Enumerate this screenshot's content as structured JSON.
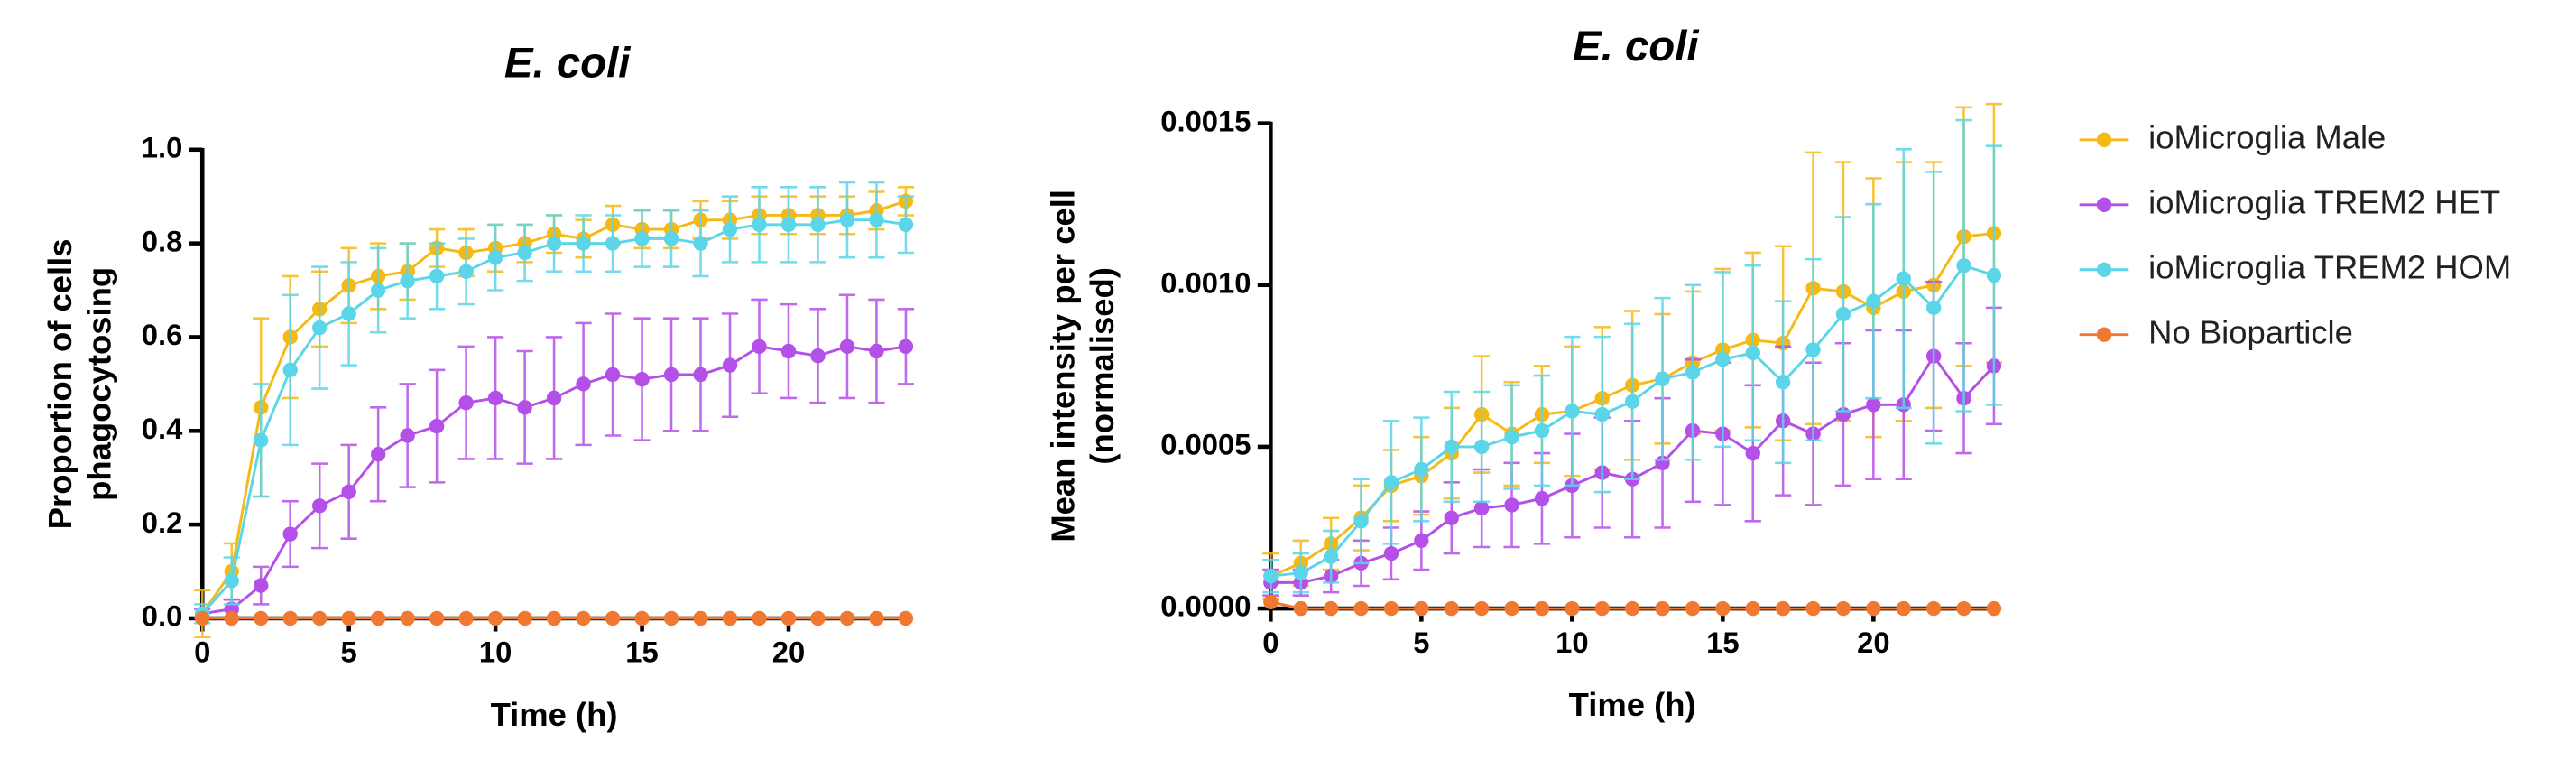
{
  "chart_data": [
    {
      "type": "line",
      "title": "E. coli",
      "xlabel": "Time (h)",
      "ylabel": [
        "Proportion of cells",
        "phagocytosing"
      ],
      "x": [
        0,
        1,
        2,
        3,
        4,
        5,
        6,
        7,
        8,
        9,
        10,
        11,
        12,
        13,
        14,
        15,
        16,
        17,
        18,
        19,
        20,
        21,
        22,
        23,
        24
      ],
      "xlim": [
        0,
        24
      ],
      "xticks": [
        0,
        5,
        10,
        15,
        20
      ],
      "ylim": [
        0,
        1
      ],
      "yticks": [
        {
          "value": 0,
          "label": "0.0"
        },
        0.2,
        0.4,
        0.6,
        0.8,
        {
          "value": 1,
          "label": "1.0"
        }
      ],
      "series": [
        {
          "color": "#f5b916",
          "values": [
            0.01,
            0.1,
            0.45,
            0.6,
            0.66,
            0.71,
            0.73,
            0.74,
            0.79,
            0.78,
            0.79,
            0.8,
            0.82,
            0.81,
            0.84,
            0.83,
            0.83,
            0.85,
            0.85,
            0.86,
            0.86,
            0.86,
            0.86,
            0.87,
            0.89
          ],
          "errors": [
            0.05,
            0.06,
            0.19,
            0.13,
            0.08,
            0.08,
            0.07,
            0.06,
            0.04,
            0.05,
            0.05,
            0.04,
            0.04,
            0.04,
            0.04,
            0.04,
            0.04,
            0.04,
            0.04,
            0.04,
            0.04,
            0.04,
            0.04,
            0.04,
            0.03
          ]
        },
        {
          "color": "#b44fe8",
          "values": [
            0.01,
            0.02,
            0.07,
            0.18,
            0.24,
            0.27,
            0.35,
            0.39,
            0.41,
            0.46,
            0.47,
            0.45,
            0.47,
            0.5,
            0.52,
            0.51,
            0.52,
            0.52,
            0.54,
            0.58,
            0.57,
            0.56,
            0.58,
            0.57,
            0.58
          ],
          "errors": [
            0.01,
            0.02,
            0.04,
            0.07,
            0.09,
            0.1,
            0.1,
            0.11,
            0.12,
            0.12,
            0.13,
            0.12,
            0.13,
            0.13,
            0.13,
            0.13,
            0.12,
            0.12,
            0.11,
            0.1,
            0.1,
            0.1,
            0.11,
            0.11,
            0.08
          ]
        },
        {
          "color": "#5ad6e8",
          "values": [
            0.01,
            0.08,
            0.38,
            0.53,
            0.62,
            0.65,
            0.7,
            0.72,
            0.73,
            0.74,
            0.77,
            0.78,
            0.8,
            0.8,
            0.8,
            0.81,
            0.81,
            0.8,
            0.83,
            0.84,
            0.84,
            0.84,
            0.85,
            0.85,
            0.84
          ],
          "errors": [
            0.02,
            0.05,
            0.12,
            0.16,
            0.13,
            0.11,
            0.09,
            0.08,
            0.07,
            0.07,
            0.07,
            0.06,
            0.06,
            0.06,
            0.06,
            0.06,
            0.06,
            0.07,
            0.07,
            0.08,
            0.08,
            0.08,
            0.08,
            0.08,
            0.06
          ]
        },
        {
          "color": "#f07830",
          "values": [
            0,
            0,
            0,
            0,
            0,
            0,
            0,
            0,
            0,
            0,
            0,
            0,
            0,
            0,
            0,
            0,
            0,
            0,
            0,
            0,
            0,
            0,
            0,
            0,
            0
          ],
          "errors": [
            0,
            0,
            0,
            0,
            0,
            0,
            0,
            0,
            0,
            0,
            0,
            0,
            0,
            0,
            0,
            0,
            0,
            0,
            0,
            0,
            0,
            0,
            0,
            0,
            0
          ]
        }
      ]
    },
    {
      "type": "line",
      "title": "E. coli",
      "xlabel": "Time (h)",
      "ylabel": [
        "Mean intensity per cell",
        "(normalised)"
      ],
      "x": [
        0,
        1,
        2,
        3,
        4,
        5,
        6,
        7,
        8,
        9,
        10,
        11,
        12,
        13,
        14,
        15,
        16,
        17,
        18,
        19,
        20,
        21,
        22,
        23,
        24
      ],
      "xlim": [
        0,
        24
      ],
      "xticks": [
        0,
        5,
        10,
        15,
        20
      ],
      "ylim": [
        0,
        0.0015
      ],
      "yticks": [
        {
          "value": 0,
          "label": "0.0000"
        },
        {
          "value": 0.0005,
          "label": "0.0005"
        },
        {
          "value": 0.001,
          "label": "0.0010"
        },
        {
          "value": 0.0015,
          "label": "0.0015"
        }
      ],
      "legend": "right",
      "series": [
        {
          "name": "ioMicroglia Male",
          "color": "#f5b916",
          "values": [
            0.0001,
            0.00014,
            0.0002,
            0.00028,
            0.00038,
            0.00041,
            0.00048,
            0.0006,
            0.00054,
            0.0006,
            0.00061,
            0.00065,
            0.00069,
            0.00071,
            0.00076,
            0.0008,
            0.00083,
            0.00082,
            0.00099,
            0.00098,
            0.00093,
            0.00098,
            0.001,
            0.00115,
            0.00116
          ],
          "errors": [
            7e-05,
            7e-05,
            8e-05,
            0.0001,
            0.00011,
            0.00012,
            0.00014,
            0.00018,
            0.00016,
            0.00015,
            0.0002,
            0.00022,
            0.00023,
            0.0002,
            0.00022,
            0.00025,
            0.00027,
            0.0003,
            0.00042,
            0.0004,
            0.0004,
            0.0004,
            0.00038,
            0.0004,
            0.0004
          ]
        },
        {
          "name": "ioMicroglia TREM2 HET",
          "color": "#b44fe8",
          "values": [
            8e-05,
            8e-05,
            0.0001,
            0.00014,
            0.00017,
            0.00021,
            0.00028,
            0.00031,
            0.00032,
            0.00034,
            0.00038,
            0.00042,
            0.0004,
            0.00045,
            0.00055,
            0.00054,
            0.00048,
            0.00058,
            0.00054,
            0.0006,
            0.00063,
            0.00063,
            0.00078,
            0.00065,
            0.00075
          ],
          "errors": [
            4e-05,
            4e-05,
            5e-05,
            7e-05,
            8e-05,
            9e-05,
            0.00011,
            0.00012,
            0.00013,
            0.00014,
            0.00016,
            0.00017,
            0.00018,
            0.0002,
            0.00022,
            0.00022,
            0.00021,
            0.00023,
            0.00022,
            0.00022,
            0.00023,
            0.00023,
            0.00023,
            0.00017,
            0.00018
          ]
        },
        {
          "name": "ioMicroglia TREM2 HOM",
          "color": "#5ad6e8",
          "values": [
            0.0001,
            0.00011,
            0.00016,
            0.00027,
            0.00039,
            0.00043,
            0.0005,
            0.0005,
            0.00053,
            0.00055,
            0.00061,
            0.0006,
            0.00064,
            0.00071,
            0.00073,
            0.00077,
            0.00079,
            0.0007,
            0.0008,
            0.00091,
            0.00095,
            0.00102,
            0.00093,
            0.00106,
            0.00103
          ],
          "errors": [
            5e-05,
            6e-05,
            8e-05,
            0.00013,
            0.00019,
            0.00016,
            0.00017,
            0.00017,
            0.00016,
            0.00017,
            0.00023,
            0.00024,
            0.00024,
            0.00025,
            0.00027,
            0.00027,
            0.00027,
            0.00025,
            0.00028,
            0.0003,
            0.0003,
            0.0004,
            0.00042,
            0.00045,
            0.0004
          ]
        },
        {
          "name": "No Bioparticle",
          "color": "#f07830",
          "values": [
            2e-05,
            0,
            0,
            0,
            0,
            0,
            0,
            0,
            0,
            0,
            0,
            0,
            0,
            0,
            0,
            0,
            0,
            0,
            0,
            0,
            0,
            0,
            0,
            0,
            0
          ],
          "errors": [
            0,
            0,
            0,
            0,
            0,
            0,
            0,
            0,
            0,
            0,
            0,
            0,
            0,
            0,
            0,
            0,
            0,
            0,
            0,
            0,
            0,
            0,
            0,
            0,
            0
          ]
        }
      ]
    }
  ]
}
